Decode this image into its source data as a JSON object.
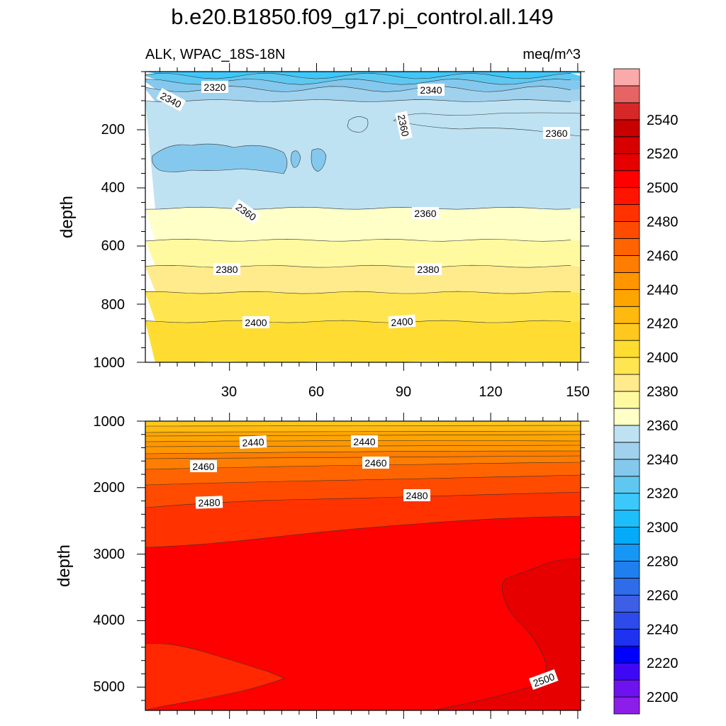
{
  "title": "b.e20.B1850.f09_g17.pi_control.all.149",
  "left_subtitle": "ALK, WPAC_18S-18N",
  "right_subtitle": "meq/m^3",
  "chart_data": [
    {
      "type": "heatmap",
      "panel": "upper",
      "ylabel": "depth",
      "xlim": [
        1,
        151
      ],
      "ylim": [
        1000,
        0
      ],
      "x_ticks": [
        "30",
        "60",
        "90",
        "120",
        "150"
      ],
      "y_ticks": [
        "200",
        "400",
        "600",
        "800",
        "1000"
      ],
      "bands": [
        {
          "from": 0,
          "to": 15,
          "value": 2310
        },
        {
          "from": 15,
          "to": 35,
          "value": 2325
        },
        {
          "from": 35,
          "to": 60,
          "value": 2335
        },
        {
          "from": 60,
          "to": 100,
          "value": 2345
        },
        {
          "from": 100,
          "to": 470,
          "value": 2355
        },
        {
          "from": 470,
          "to": 580,
          "value": 2365
        },
        {
          "from": 580,
          "to": 670,
          "value": 2375
        },
        {
          "from": 670,
          "to": 760,
          "value": 2385
        },
        {
          "from": 760,
          "to": 860,
          "value": 2395
        },
        {
          "from": 860,
          "to": 1000,
          "value": 2405
        }
      ],
      "contour_labels": [
        "2320",
        "2340",
        "2340",
        "2360",
        "2360",
        "2360",
        "2360",
        "2380",
        "2380",
        "2400",
        "2400"
      ]
    },
    {
      "type": "heatmap",
      "panel": "lower",
      "ylabel": "depth",
      "xlim": [
        1,
        151
      ],
      "ylim": [
        5350,
        1000
      ],
      "x_ticks": [],
      "y_ticks": [
        "1000",
        "2000",
        "3000",
        "4000",
        "5000"
      ],
      "contour_labels": [
        "2440",
        "2440",
        "2460",
        "2460",
        "2480",
        "2480",
        "2500"
      ]
    }
  ],
  "colorbar": {
    "min": 2190,
    "step": 10,
    "labels": [
      "2200",
      "2220",
      "2240",
      "2260",
      "2280",
      "2300",
      "2320",
      "2340",
      "2360",
      "2380",
      "2400",
      "2420",
      "2440",
      "2460",
      "2480",
      "2500",
      "2520",
      "2540"
    ],
    "colors": [
      "#8C1EEA",
      "#6E13F0",
      "#3F08F5",
      "#0000FF",
      "#1E32F0",
      "#2D4BEB",
      "#3C5FE6",
      "#2E6CEA",
      "#1F7FEE",
      "#1696F5",
      "#05AAF8",
      "#1EBEFA",
      "#3CC8FA",
      "#5FC8F0",
      "#85C8EE",
      "#A0D2EE",
      "#BEE2F2",
      "#FFFFC8",
      "#FFFAA0",
      "#FFEB8C",
      "#FFE650",
      "#FFDC32",
      "#FFC81E",
      "#FFB90F",
      "#FFA500",
      "#FF9600",
      "#FF7D00",
      "#FF6400",
      "#FF4B00",
      "#FF3200",
      "#FF1400",
      "#FF0000",
      "#E60000",
      "#D70000",
      "#C80000",
      "#D72828",
      "#E66464",
      "#FAAAAA"
    ]
  }
}
